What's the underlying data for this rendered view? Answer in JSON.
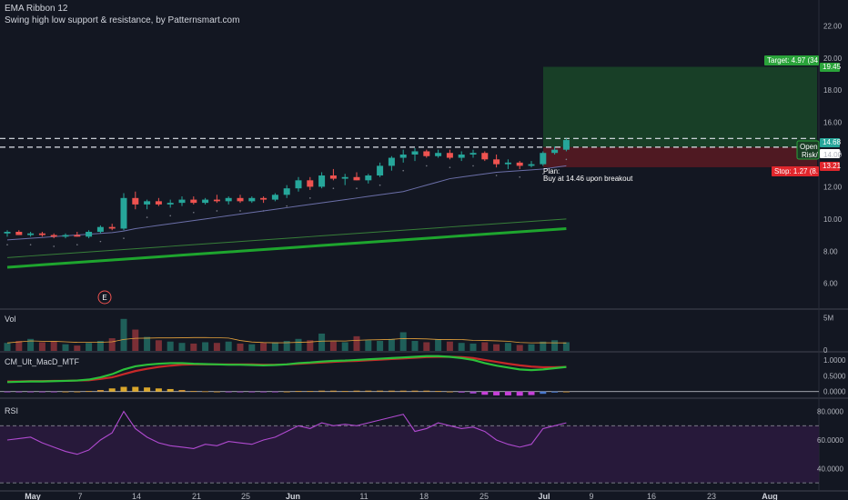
{
  "header": {
    "indicator_title": "EMA Ribbon 12",
    "indicator_subtitle": "Swing high low support & resistance, by Patternsmart.com"
  },
  "panes": {
    "volume_label": "Vol",
    "macd_label": "CM_Ult_MacD_MTF",
    "rsi_label": "RSI"
  },
  "annotations": {
    "plan_title": "Plan:",
    "plan_text": "Buy at 14.46 upon breakout",
    "target_label": "Target: 4.97 (34",
    "stop_label": "Stop: 1.27 (8.",
    "open_label": "Open",
    "risk_label": "Risk/",
    "earnings_marker": "E",
    "target_price_tag": "19.45",
    "entry_price_tag": "14.68",
    "entry2_price_tag": "14.48",
    "stop_price_tag": "13.21"
  },
  "colors": {
    "background": "#131722",
    "up": "#26a69a",
    "down": "#ef5350",
    "target_zone": "#1b4d2a",
    "stop_zone": "#5a1a22",
    "ema_fast": "#1ea52e",
    "sma": "#6b6fa8",
    "rsi": "#b04ad0"
  },
  "chart_data": {
    "type": "candlestick",
    "price_axis": {
      "ticks": [
        6.0,
        8.0,
        10.0,
        12.0,
        14.0,
        16.0,
        18.0,
        20.0,
        22.0
      ],
      "ylim": [
        4.4,
        23.6
      ]
    },
    "x_ticks": [
      "May",
      "7",
      "14",
      "21",
      "25",
      "Jun",
      "11",
      "18",
      "25",
      "Jul",
      "9",
      "16",
      "23",
      "Aug"
    ],
    "candles": [
      [
        9.1,
        9.3,
        8.9,
        9.2
      ],
      [
        9.2,
        9.3,
        9.0,
        9.0
      ],
      [
        9.0,
        9.2,
        8.9,
        9.1
      ],
      [
        9.1,
        9.2,
        8.9,
        9.0
      ],
      [
        9.0,
        9.1,
        8.8,
        8.9
      ],
      [
        8.9,
        9.1,
        8.8,
        9.0
      ],
      [
        9.0,
        9.2,
        8.9,
        8.9
      ],
      [
        8.9,
        9.3,
        8.8,
        9.2
      ],
      [
        9.2,
        9.6,
        9.1,
        9.5
      ],
      [
        9.5,
        9.7,
        9.3,
        9.4
      ],
      [
        9.4,
        11.6,
        9.3,
        11.3
      ],
      [
        11.3,
        11.7,
        10.6,
        10.9
      ],
      [
        10.9,
        11.2,
        10.6,
        11.1
      ],
      [
        11.1,
        11.3,
        10.8,
        10.9
      ],
      [
        10.9,
        11.2,
        10.7,
        11.0
      ],
      [
        11.0,
        11.4,
        10.8,
        11.2
      ],
      [
        11.2,
        11.4,
        10.9,
        11.0
      ],
      [
        11.0,
        11.3,
        10.9,
        11.2
      ],
      [
        11.2,
        11.5,
        11.0,
        11.1
      ],
      [
        11.1,
        11.4,
        10.9,
        11.3
      ],
      [
        11.3,
        11.5,
        11.0,
        11.1
      ],
      [
        11.1,
        11.4,
        11.0,
        11.3
      ],
      [
        11.3,
        11.4,
        11.0,
        11.2
      ],
      [
        11.2,
        11.6,
        11.1,
        11.5
      ],
      [
        11.5,
        12.1,
        11.3,
        11.9
      ],
      [
        11.9,
        12.6,
        11.7,
        12.4
      ],
      [
        12.4,
        12.6,
        11.8,
        12.0
      ],
      [
        12.0,
        12.9,
        11.9,
        12.7
      ],
      [
        12.7,
        13.1,
        12.4,
        12.5
      ],
      [
        12.5,
        12.8,
        12.1,
        12.6
      ],
      [
        12.6,
        12.9,
        12.4,
        12.4
      ],
      [
        12.4,
        12.8,
        12.2,
        12.7
      ],
      [
        12.7,
        13.5,
        12.6,
        13.3
      ],
      [
        13.3,
        13.9,
        13.0,
        13.8
      ],
      [
        13.8,
        14.3,
        13.5,
        14.0
      ],
      [
        14.0,
        14.4,
        13.6,
        14.2
      ],
      [
        14.2,
        14.3,
        13.8,
        13.9
      ],
      [
        13.9,
        14.3,
        13.8,
        14.1
      ],
      [
        14.1,
        14.3,
        13.7,
        13.8
      ],
      [
        13.8,
        14.2,
        13.6,
        14.0
      ],
      [
        14.0,
        14.3,
        13.8,
        14.1
      ],
      [
        14.1,
        14.2,
        13.6,
        13.7
      ],
      [
        13.7,
        14.0,
        13.2,
        13.4
      ],
      [
        13.4,
        13.7,
        13.1,
        13.5
      ],
      [
        13.5,
        13.6,
        13.1,
        13.3
      ],
      [
        13.3,
        13.6,
        13.2,
        13.4
      ],
      [
        13.4,
        14.2,
        13.3,
        14.1
      ],
      [
        14.1,
        14.5,
        14.0,
        14.3
      ],
      [
        14.3,
        15.0,
        14.2,
        14.9
      ]
    ],
    "sma_line": [
      8.7,
      8.75,
      8.8,
      8.85,
      8.9,
      8.95,
      9.0,
      9.05,
      9.1,
      9.15,
      9.25,
      9.4,
      9.5,
      9.6,
      9.7,
      9.8,
      9.9,
      10.0,
      10.1,
      10.2,
      10.3,
      10.4,
      10.5,
      10.6,
      10.7,
      10.8,
      10.9,
      11.0,
      11.1,
      11.2,
      11.3,
      11.4,
      11.5,
      11.6,
      11.7,
      11.9,
      12.1,
      12.3,
      12.5,
      12.6,
      12.7,
      12.8,
      12.9,
      12.95,
      13.0,
      13.05,
      13.1,
      13.2,
      13.3
    ],
    "ema_line": [
      7.0,
      7.05,
      7.1,
      7.15,
      7.2,
      7.25,
      7.3,
      7.35,
      7.4,
      7.45,
      7.5,
      7.55,
      7.6,
      7.65,
      7.7,
      7.75,
      7.8,
      7.85,
      7.9,
      7.95,
      8.0,
      8.05,
      8.1,
      8.15,
      8.2,
      8.25,
      8.3,
      8.35,
      8.4,
      8.45,
      8.5,
      8.55,
      8.6,
      8.65,
      8.7,
      8.75,
      8.8,
      8.85,
      8.9,
      8.95,
      9.0,
      9.05,
      9.1,
      9.15,
      9.2,
      9.25,
      9.3,
      9.35,
      9.4
    ],
    "position": {
      "entry": 14.46,
      "target": 19.45,
      "stop": 13.21
    },
    "resistance_lines": [
      15.0,
      14.46
    ],
    "volume": {
      "ticks": [
        "0",
        "5M"
      ],
      "values": [
        1.2,
        1.5,
        1.8,
        1.3,
        1.4,
        1.0,
        0.8,
        1.2,
        1.5,
        1.9,
        4.8,
        3.2,
        2.1,
        1.6,
        1.4,
        1.2,
        1.1,
        1.3,
        1.2,
        1.4,
        1.1,
        1.0,
        1.2,
        1.3,
        1.5,
        1.8,
        1.6,
        2.6,
        1.4,
        1.3,
        2.2,
        1.6,
        1.5,
        1.8,
        2.8,
        1.5,
        1.3,
        1.7,
        1.4,
        1.2,
        1.1,
        1.3,
        1.0,
        1.2,
        0.9,
        1.0,
        1.4,
        1.6,
        1.3
      ]
    },
    "macd": {
      "ticks": [
        "1.0000",
        "0.5000",
        "0.0000"
      ],
      "macd_line": [
        0.3,
        0.31,
        0.32,
        0.32,
        0.33,
        0.34,
        0.35,
        0.38,
        0.45,
        0.55,
        0.7,
        0.8,
        0.85,
        0.88,
        0.9,
        0.9,
        0.88,
        0.87,
        0.86,
        0.85,
        0.85,
        0.84,
        0.83,
        0.84,
        0.86,
        0.9,
        0.92,
        0.95,
        0.97,
        0.98,
        1.0,
        1.02,
        1.04,
        1.06,
        1.08,
        1.1,
        1.12,
        1.12,
        1.1,
        1.06,
        1.0,
        0.9,
        0.82,
        0.76,
        0.7,
        0.68,
        0.7,
        0.74,
        0.78
      ],
      "signal_line": [
        0.32,
        0.32,
        0.33,
        0.33,
        0.34,
        0.34,
        0.35,
        0.36,
        0.4,
        0.45,
        0.55,
        0.65,
        0.72,
        0.78,
        0.82,
        0.85,
        0.86,
        0.86,
        0.86,
        0.86,
        0.86,
        0.86,
        0.85,
        0.85,
        0.86,
        0.88,
        0.9,
        0.92,
        0.94,
        0.96,
        0.97,
        0.99,
        1.01,
        1.03,
        1.05,
        1.07,
        1.09,
        1.1,
        1.1,
        1.09,
        1.06,
        1.0,
        0.94,
        0.88,
        0.83,
        0.79,
        0.77,
        0.77,
        0.78
      ],
      "histogram": [
        -0.02,
        -0.01,
        -0.01,
        -0.01,
        -0.01,
        0.0,
        0.0,
        0.02,
        0.05,
        0.1,
        0.15,
        0.15,
        0.13,
        0.1,
        0.08,
        0.05,
        0.02,
        0.01,
        0.0,
        -0.01,
        -0.01,
        -0.02,
        -0.02,
        -0.01,
        0.0,
        0.02,
        0.02,
        0.03,
        0.03,
        0.02,
        0.03,
        0.03,
        0.03,
        0.03,
        0.03,
        0.03,
        0.03,
        0.02,
        0.0,
        -0.03,
        -0.06,
        -0.1,
        -0.12,
        -0.12,
        -0.13,
        -0.11,
        -0.07,
        -0.03,
        0.0
      ]
    },
    "rsi": {
      "ticks": [
        "80.0000",
        "60.0000",
        "40.0000"
      ],
      "upper_band": 70,
      "lower_band": 30,
      "values": [
        60,
        61,
        62,
        58,
        55,
        52,
        50,
        53,
        60,
        65,
        80,
        68,
        62,
        58,
        56,
        55,
        54,
        57,
        56,
        59,
        58,
        57,
        60,
        62,
        66,
        70,
        68,
        72,
        70,
        71,
        70,
        72,
        74,
        76,
        78,
        66,
        68,
        72,
        70,
        68,
        69,
        66,
        60,
        57,
        55,
        57,
        68,
        70,
        72
      ]
    }
  }
}
